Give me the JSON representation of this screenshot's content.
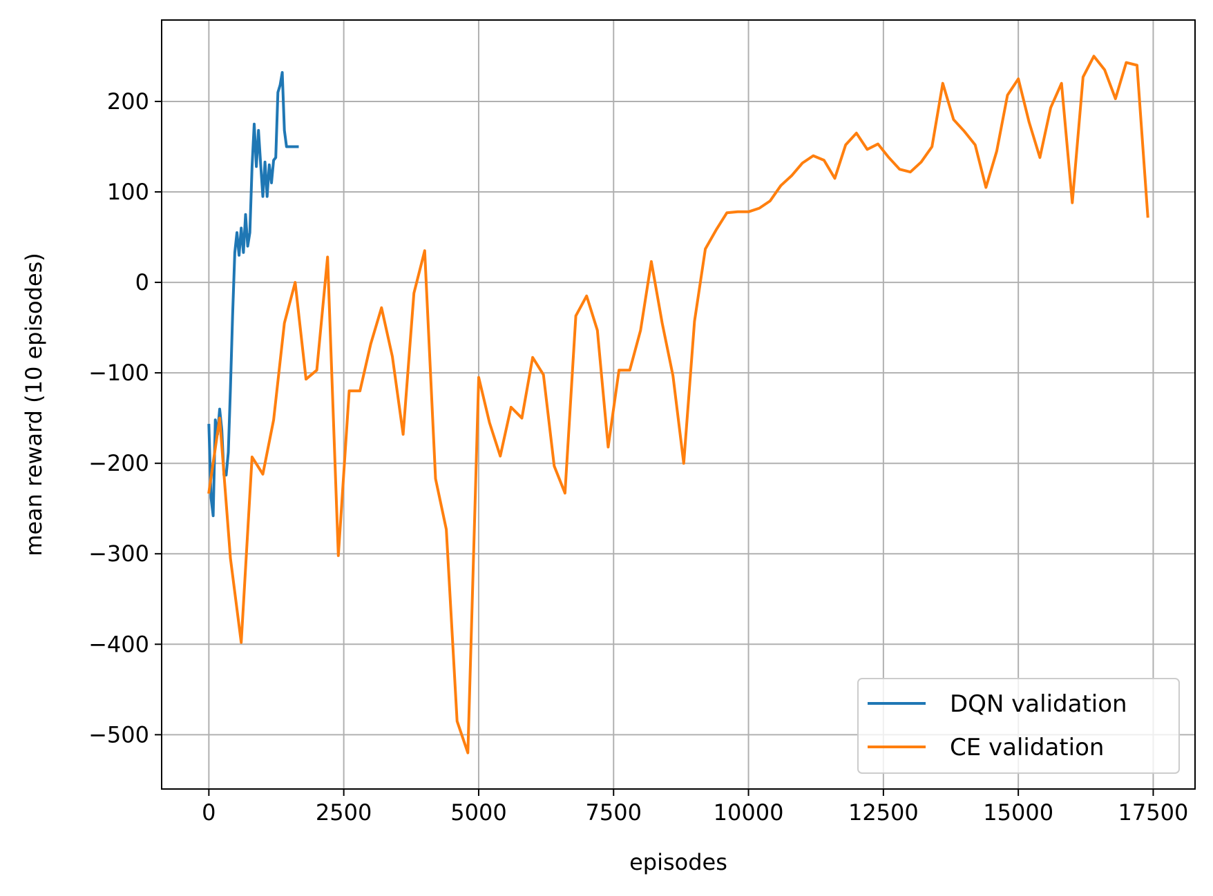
{
  "chart_data": {
    "type": "line",
    "title": "",
    "xlabel": "episodes",
    "ylabel": "mean reward (10 episodes)",
    "xlim": [
      -875,
      18275
    ],
    "ylim": [
      -560,
      290
    ],
    "xticks": [
      0,
      2500,
      5000,
      7500,
      10000,
      12500,
      15000,
      17500
    ],
    "yticks": [
      -500,
      -400,
      -300,
      -200,
      -100,
      0,
      100,
      200
    ],
    "xtick_labels": [
      "0",
      "2500",
      "5000",
      "7500",
      "10000",
      "12500",
      "15000",
      "17500"
    ],
    "ytick_labels": [
      "−500",
      "−400",
      "−300",
      "−200",
      "−100",
      "0",
      "100",
      "200"
    ],
    "grid": true,
    "legend_position": "lower-right",
    "series": [
      {
        "name": "DQN validation",
        "color": "#1f77b4",
        "x": [
          0,
          40,
          80,
          120,
          160,
          200,
          240,
          280,
          320,
          360,
          400,
          440,
          480,
          520,
          560,
          600,
          640,
          680,
          720,
          760,
          800,
          840,
          880,
          920,
          960,
          1000,
          1040,
          1080,
          1120,
          1160,
          1200,
          1240,
          1280,
          1320,
          1360,
          1400,
          1440,
          1480,
          1520,
          1560,
          1600,
          1640
        ],
        "y": [
          -158,
          -238,
          -258,
          -152,
          -168,
          -140,
          -163,
          -213,
          -213,
          -188,
          -117,
          -37,
          33,
          55,
          30,
          60,
          33,
          75,
          40,
          55,
          128,
          175,
          128,
          168,
          130,
          95,
          133,
          95,
          130,
          110,
          135,
          138,
          210,
          218,
          232,
          168,
          150,
          150,
          150,
          150,
          150,
          150
        ]
      },
      {
        "name": "CE validation",
        "color": "#ff7f0e",
        "x": [
          0,
          200,
          400,
          600,
          800,
          1000,
          1200,
          1400,
          1600,
          1800,
          2000,
          2200,
          2400,
          2600,
          2800,
          3000,
          3200,
          3400,
          3600,
          3800,
          4000,
          4200,
          4400,
          4600,
          4800,
          5000,
          5200,
          5400,
          5600,
          5800,
          6000,
          6200,
          6400,
          6600,
          6800,
          7000,
          7200,
          7400,
          7600,
          7800,
          8000,
          8200,
          8400,
          8600,
          8800,
          9000,
          9200,
          9400,
          9600,
          9800,
          10000,
          10200,
          10400,
          10600,
          10800,
          11000,
          11200,
          11400,
          11600,
          11800,
          12000,
          12200,
          12400,
          12600,
          12800,
          13000,
          13200,
          13400,
          13600,
          13800,
          14000,
          14200,
          14400,
          14600,
          14800,
          15000,
          15200,
          15400,
          15600,
          15800,
          16000,
          16200,
          16400,
          16600,
          16800,
          17000,
          17200,
          17400
        ],
        "y": [
          -232,
          -150,
          -305,
          -398,
          -193,
          -212,
          -152,
          -45,
          0,
          -107,
          -97,
          28,
          -302,
          -120,
          -120,
          -68,
          -28,
          -82,
          -168,
          -12,
          35,
          -217,
          -273,
          -485,
          -520,
          -105,
          -155,
          -192,
          -138,
          -150,
          -83,
          -102,
          -203,
          -233,
          -37,
          -15,
          -53,
          -182,
          -97,
          -97,
          -53,
          23,
          -45,
          -103,
          -200,
          -43,
          37,
          58,
          77,
          78,
          78,
          82,
          90,
          107,
          118,
          132,
          140,
          135,
          115,
          152,
          165,
          147,
          153,
          138,
          125,
          122,
          133,
          150,
          220,
          180,
          167,
          152,
          105,
          145,
          207,
          225,
          177,
          138,
          193,
          220,
          88,
          227,
          250,
          235,
          203,
          243,
          240,
          73
        ]
      }
    ]
  }
}
